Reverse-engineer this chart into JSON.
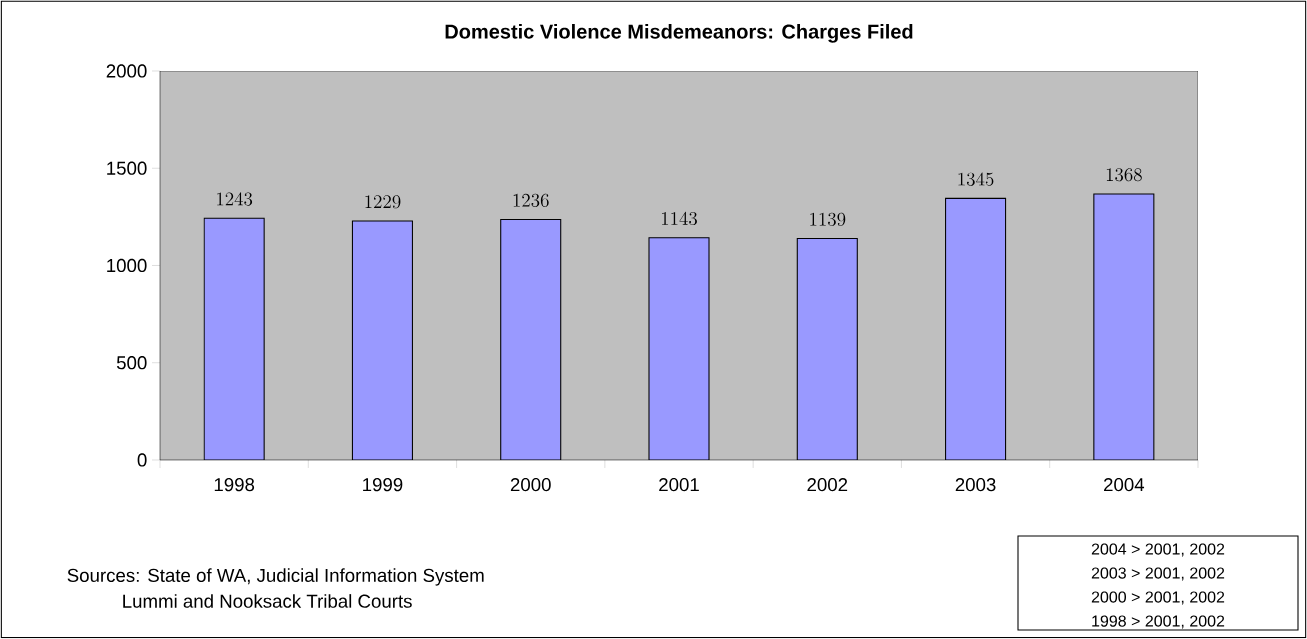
{
  "chart_data": {
    "type": "bar",
    "title": "Domestic Violence Misdemeanors: Charges Filed",
    "categories": [
      "1998",
      "1999",
      "2000",
      "2001",
      "2002",
      "2003",
      "2004"
    ],
    "values": [
      1243,
      1229,
      1236,
      1143,
      1139,
      1345,
      1368
    ],
    "color": "#9999ff",
    "ylim": [
      0,
      2000
    ],
    "yticks": [
      0,
      500,
      1000,
      1500,
      2000
    ],
    "data_labels": true,
    "annotations": [
      "Sources: State of WA, Judicial Information System",
      "Lummi and Nooksack Tribal Courts",
      "2004 > 2001, 2002",
      "2003 > 2001, 2002",
      "2000 > 2001, 2002",
      "1998 > 2001, 2002"
    ]
  }
}
